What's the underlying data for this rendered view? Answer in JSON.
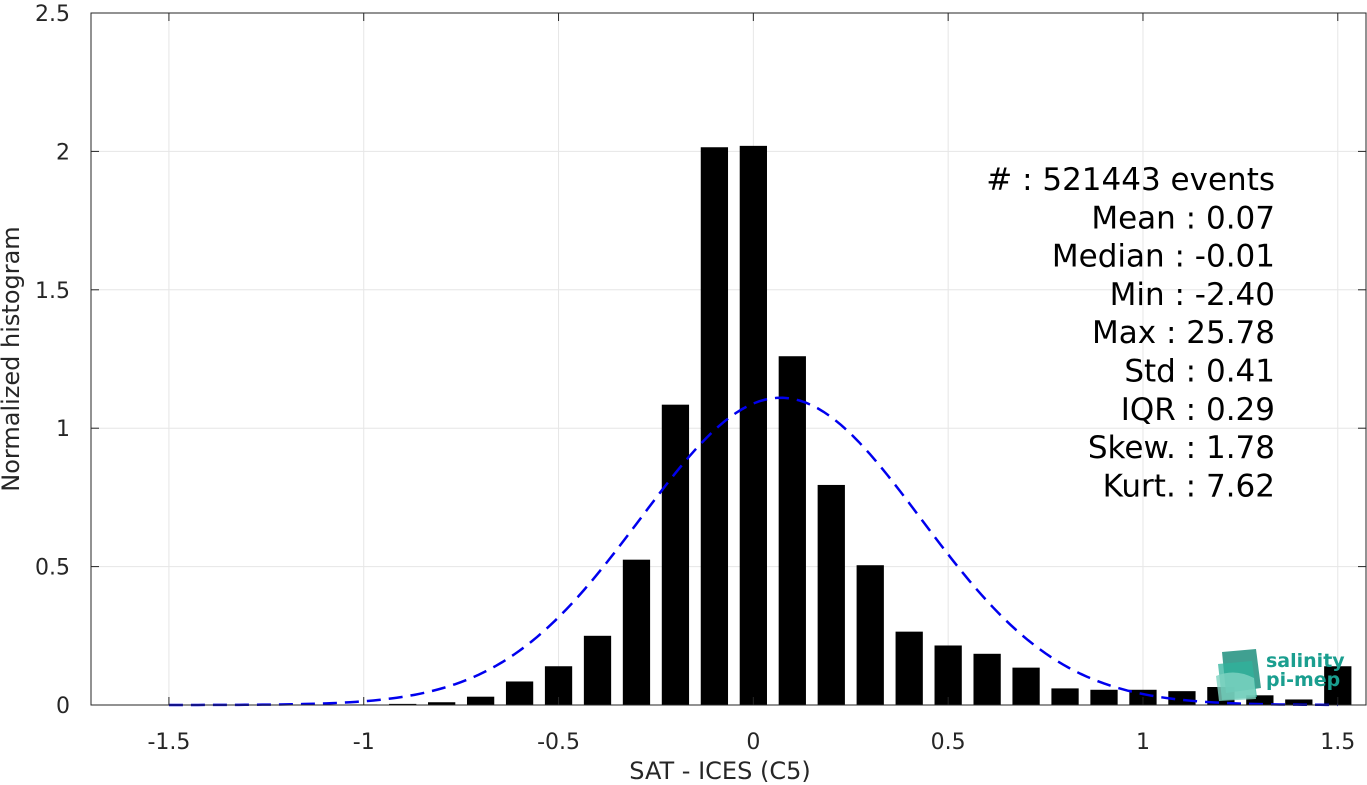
{
  "chart_data": {
    "type": "bar",
    "xlabel": "SAT - ICES (C5)",
    "ylabel": "Normalized histogram",
    "xlim": [
      -1.5,
      1.5
    ],
    "ylim": [
      0,
      2.5
    ],
    "xticks": [
      -1.5,
      -1,
      -0.5,
      0,
      0.5,
      1,
      1.5
    ],
    "xtick_labels": [
      "-1.5",
      "-1",
      "-0.5",
      "0",
      "0.5",
      "1",
      "1.5"
    ],
    "yticks": [
      0,
      0.5,
      1,
      1.5,
      2,
      2.5
    ],
    "ytick_labels": [
      "0",
      "0.5",
      "1",
      "1.5",
      "2",
      "2.5"
    ],
    "grid": true,
    "bar_width": 0.07,
    "bar_color": "#000000",
    "bars": {
      "x": [
        -1.0,
        -0.9,
        -0.8,
        -0.7,
        -0.6,
        -0.5,
        -0.4,
        -0.3,
        -0.2,
        -0.1,
        0.0,
        0.1,
        0.2,
        0.3,
        0.4,
        0.5,
        0.6,
        0.7,
        0.8,
        0.9,
        1.0,
        1.1,
        1.2,
        1.3,
        1.4,
        1.5
      ],
      "values": [
        0.002,
        0.004,
        0.01,
        0.03,
        0.085,
        0.14,
        0.25,
        0.525,
        1.085,
        2.015,
        2.02,
        1.26,
        0.795,
        0.505,
        0.265,
        0.215,
        0.185,
        0.135,
        0.06,
        0.055,
        0.055,
        0.05,
        0.065,
        0.035,
        0.02,
        0.14
      ]
    },
    "fit_curve": {
      "label": "Gaussian fit",
      "color": "#0000ee",
      "style": "dashed",
      "mean": 0.07,
      "std": 0.36,
      "peak": 1.11,
      "x_range": [
        -1.5,
        1.5
      ]
    },
    "stats": [
      "#  : 521443 events",
      "Mean : 0.07",
      "Median : -0.01",
      "Min : -2.40",
      "Max : 25.78",
      "Std : 0.41",
      "IQR : 0.29",
      "Skew. : 1.78",
      "Kurt. : 7.62"
    ]
  },
  "logo": {
    "line1": "salinity",
    "line2": "pi-mep",
    "color": "#1a9e8f"
  }
}
